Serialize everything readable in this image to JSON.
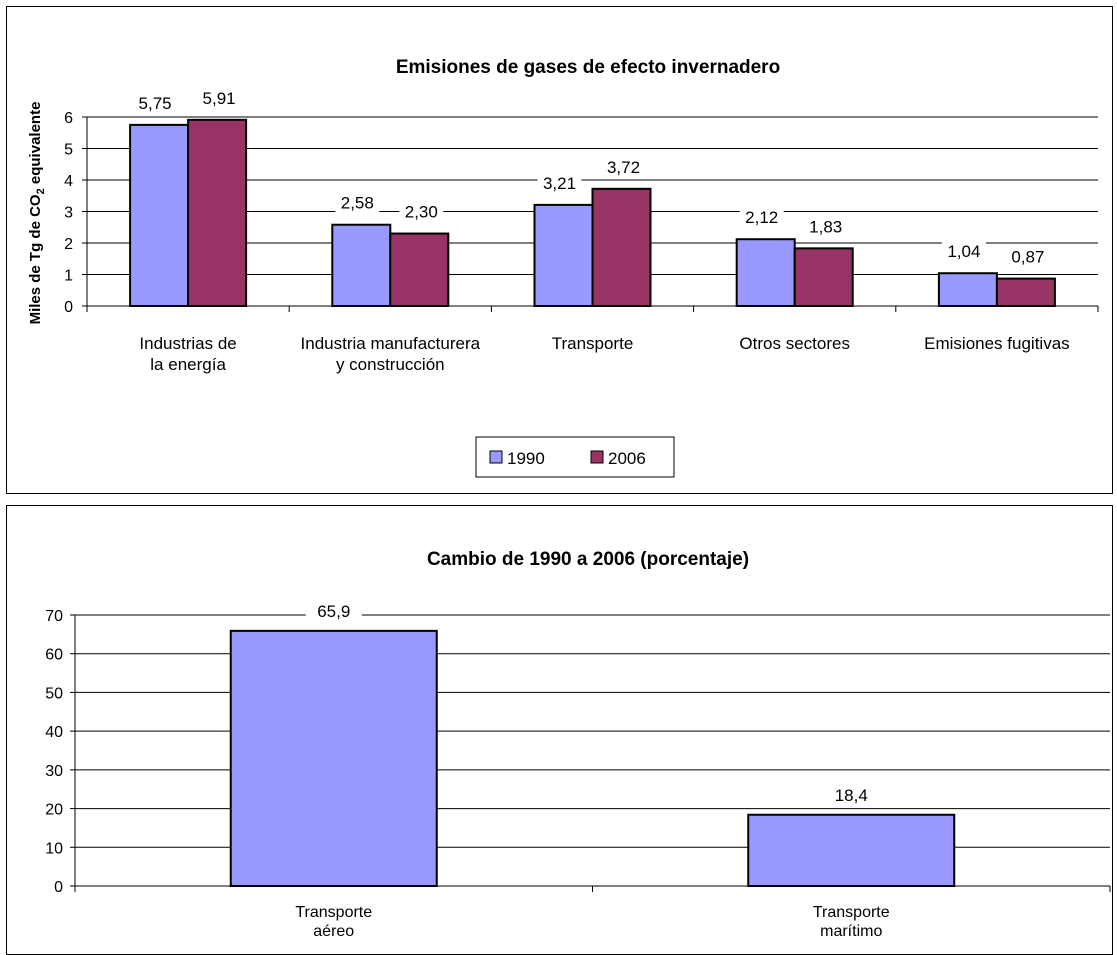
{
  "chart_data": [
    {
      "type": "bar",
      "title": "Emisiones de gases de efecto invernadero",
      "ylabel_main": "Miles de Tg de CO",
      "ylabel_sub": "2",
      "ylabel_tail": " equivalente",
      "ylim": [
        0,
        6
      ],
      "yticks": [
        0,
        1,
        2,
        3,
        4,
        5,
        6
      ],
      "grid": true,
      "legend_position": "bottom",
      "categories": [
        [
          "Industrias de",
          "la energía"
        ],
        [
          "Industria manufacturera",
          "y construcción"
        ],
        [
          "Transporte"
        ],
        [
          "Otros sectores"
        ],
        [
          "Emisiones fugitivas"
        ]
      ],
      "series": [
        {
          "name": "1990",
          "color": "#9999ff",
          "values": [
            5.75,
            2.58,
            3.21,
            2.12,
            1.04
          ],
          "labels": [
            "5,75",
            "2,58",
            "3,21",
            "2,12",
            "1,04"
          ]
        },
        {
          "name": "2006",
          "color": "#993366",
          "values": [
            5.91,
            2.3,
            3.72,
            1.83,
            0.87
          ],
          "labels": [
            "5,91",
            "2,30",
            "3,72",
            "1,83",
            "0,87"
          ]
        }
      ]
    },
    {
      "type": "bar",
      "title": "Cambio de 1990 a 2006 (porcentaje)",
      "ylim": [
        0,
        70
      ],
      "yticks": [
        0,
        10,
        20,
        30,
        40,
        50,
        60,
        70
      ],
      "grid": true,
      "categories": [
        [
          "Transporte",
          "aéreo"
        ],
        [
          "Transporte",
          "marítimo"
        ]
      ],
      "series": [
        {
          "color": "#9999ff",
          "values": [
            65.9,
            18.4
          ],
          "labels": [
            "65,9",
            "18,4"
          ]
        }
      ]
    }
  ]
}
